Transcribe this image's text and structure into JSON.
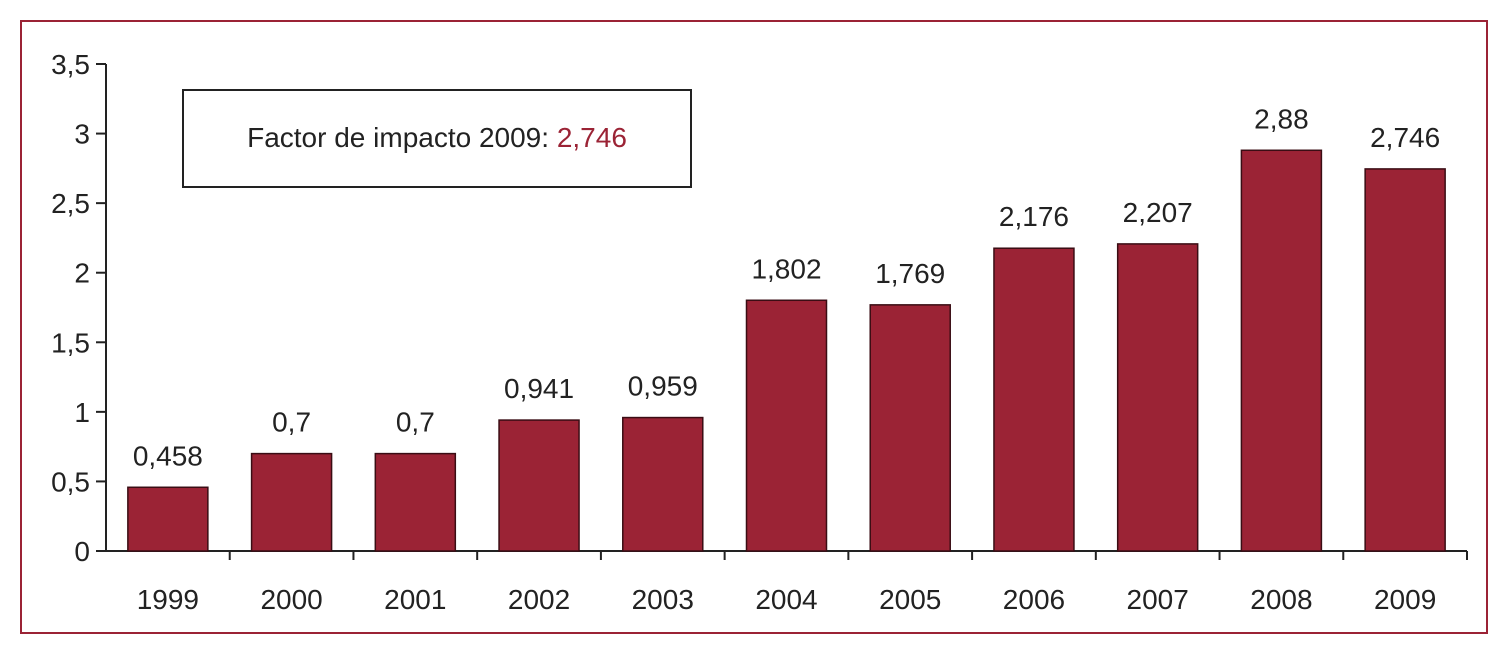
{
  "colors": {
    "bar": "#9b2335",
    "frame": "#9b2335",
    "axis": "#222222",
    "highlight": "#9b2335"
  },
  "annotation": {
    "label": "Factor de impacto 2009: ",
    "value": "2,746"
  },
  "chart_data": {
    "type": "bar",
    "title": "",
    "xlabel": "",
    "ylabel": "",
    "categories": [
      "1999",
      "2000",
      "2001",
      "2002",
      "2003",
      "2004",
      "2005",
      "2006",
      "2007",
      "2008",
      "2009"
    ],
    "values": [
      0.458,
      0.7,
      0.7,
      0.941,
      0.959,
      1.802,
      1.769,
      2.176,
      2.207,
      2.88,
      2.746
    ],
    "value_labels": [
      "0,458",
      "0,7",
      "0,7",
      "0,941",
      "0,959",
      "1,802",
      "1,769",
      "2,176",
      "2,207",
      "2,88",
      "2,746"
    ],
    "ylim": [
      0,
      3.5
    ],
    "yticks": [
      0,
      0.5,
      1,
      1.5,
      2,
      2.5,
      3,
      3.5
    ],
    "ytick_labels": [
      "0",
      "0,5",
      "1",
      "1,5",
      "2",
      "2,5",
      "3",
      "3,5"
    ],
    "grid": false,
    "legend": "none"
  }
}
